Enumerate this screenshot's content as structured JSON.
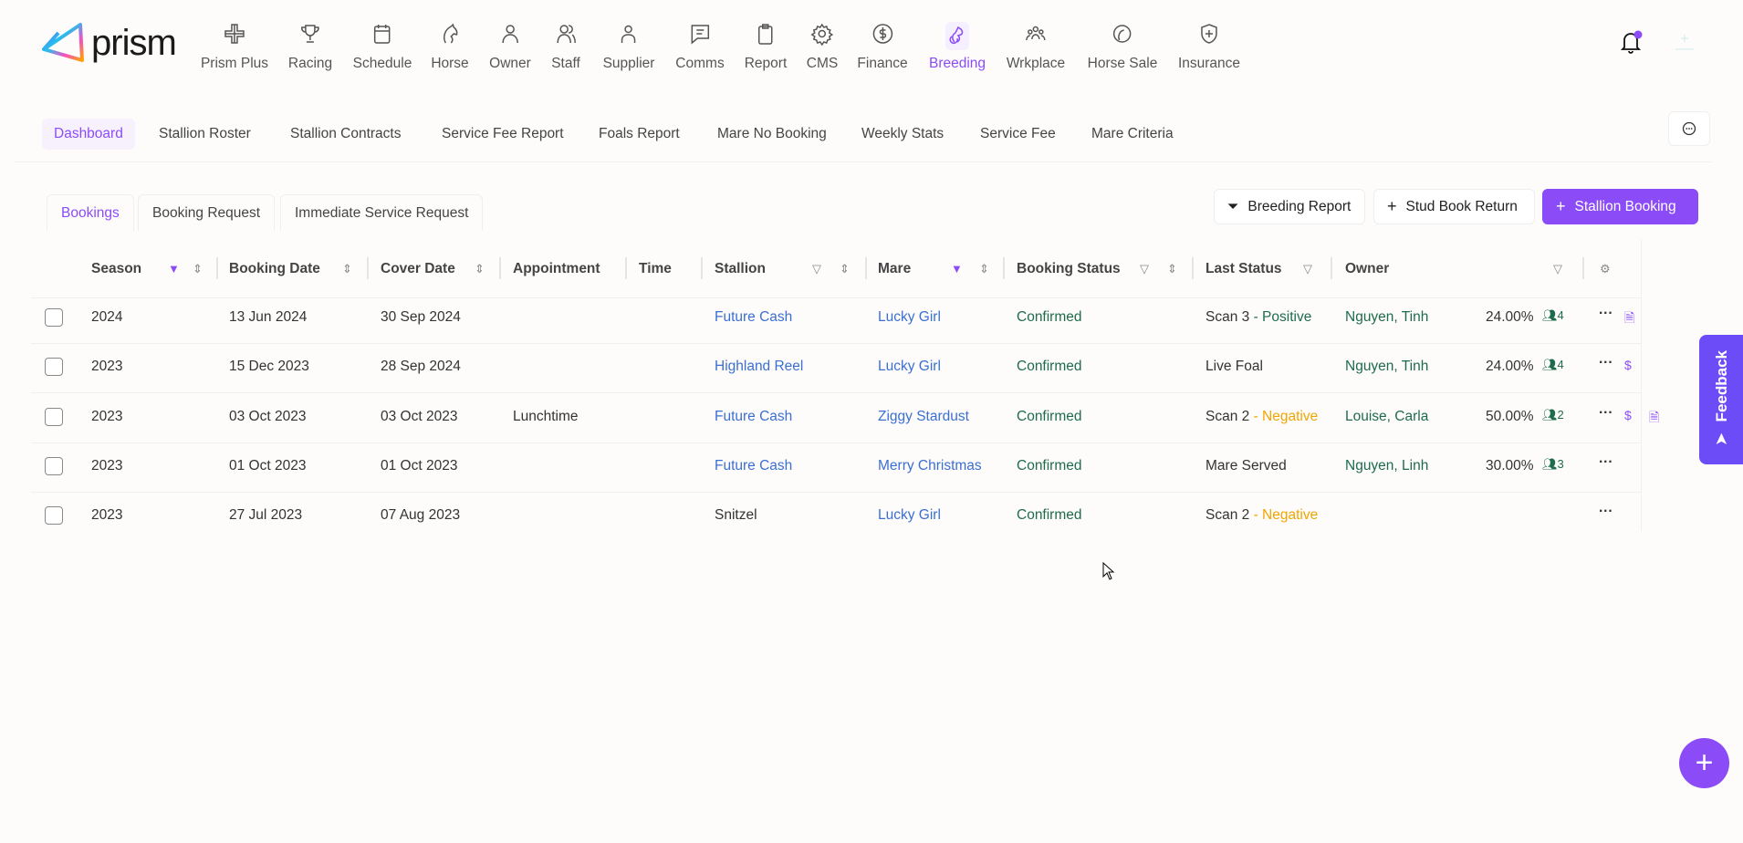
{
  "brand": {
    "name": "prism"
  },
  "nav": [
    {
      "label": "Prism Plus",
      "icon": "prism-plus-icon"
    },
    {
      "label": "Racing",
      "icon": "trophy-icon"
    },
    {
      "label": "Schedule",
      "icon": "calendar-icon"
    },
    {
      "label": "Horse",
      "icon": "horse-icon"
    },
    {
      "label": "Owner",
      "icon": "user-icon"
    },
    {
      "label": "Staff",
      "icon": "users-icon"
    },
    {
      "label": "Supplier",
      "icon": "supplier-icon"
    },
    {
      "label": "Comms",
      "icon": "message-icon"
    },
    {
      "label": "Report",
      "icon": "clipboard-icon"
    },
    {
      "label": "CMS",
      "icon": "gear-icon"
    },
    {
      "label": "Finance",
      "icon": "dollar-icon"
    },
    {
      "label": "Breeding",
      "icon": "breeding-icon",
      "active": true
    },
    {
      "label": "Wrkplace",
      "icon": "group-icon"
    },
    {
      "label": "Horse Sale",
      "icon": "horse-sale-icon"
    },
    {
      "label": "Insurance",
      "icon": "shield-plus-icon"
    }
  ],
  "subnav": [
    "Dashboard",
    "Stallion Roster",
    "Stallion Contracts",
    "Service Fee Report",
    "Foals Report",
    "Mare No Booking",
    "Weekly Stats",
    "Service Fee",
    "Mare Criteria"
  ],
  "tabs": [
    "Bookings",
    "Booking Request",
    "Immediate Service Request"
  ],
  "actions": {
    "breeding_report": "Breeding Report",
    "stud_book_return": "Stud Book Return",
    "stallion_booking": "Stallion Booking"
  },
  "columns": [
    "Season",
    "Booking Date",
    "Cover Date",
    "Appointment",
    "Time",
    "Stallion",
    "Mare",
    "Booking Status",
    "Last Status",
    "Owner"
  ],
  "rows": [
    {
      "season": "2024",
      "booking_date": "13 Jun 2024",
      "cover_date": "30 Sep 2024",
      "appointment": "",
      "time": "",
      "stallion": "Future Cash",
      "stallion_link": true,
      "mare": "Lucky Girl",
      "status": "Confirmed",
      "last_status": "Scan 3",
      "last_result": "- Positive",
      "result_type": "positive",
      "owner": "Nguyen, Tinh",
      "share": "24.00%",
      "owners_count": "4",
      "icons": [
        "document"
      ]
    },
    {
      "season": "2023",
      "booking_date": "15 Dec 2023",
      "cover_date": "28 Sep 2024",
      "appointment": "",
      "time": "",
      "stallion": "Highland Reel",
      "stallion_link": true,
      "mare": "Lucky Girl",
      "status": "Confirmed",
      "last_status": "Live Foal",
      "last_result": "",
      "result_type": "",
      "owner": "Nguyen, Tinh",
      "share": "24.00%",
      "owners_count": "4",
      "icons": [
        "dollar"
      ]
    },
    {
      "season": "2023",
      "booking_date": "03 Oct 2023",
      "cover_date": "03 Oct 2023",
      "appointment": "Lunchtime",
      "time": "",
      "stallion": "Future Cash",
      "stallion_link": true,
      "mare": "Ziggy Stardust",
      "status": "Confirmed",
      "last_status": "Scan 2",
      "last_result": "- Negative",
      "result_type": "negative",
      "owner": "Louise, Carla",
      "share": "50.00%",
      "owners_count": "2",
      "icons": [
        "dollar",
        "document"
      ]
    },
    {
      "season": "2023",
      "booking_date": "01 Oct 2023",
      "cover_date": "01 Oct 2023",
      "appointment": "",
      "time": "",
      "stallion": "Future Cash",
      "stallion_link": true,
      "mare": "Merry Christmas",
      "status": "Confirmed",
      "last_status": "Mare Served",
      "last_result": "",
      "result_type": "",
      "owner": "Nguyen, Linh",
      "share": "30.00%",
      "owners_count": "3",
      "icons": []
    },
    {
      "season": "2023",
      "booking_date": "27 Jul 2023",
      "cover_date": "07 Aug 2023",
      "appointment": "",
      "time": "",
      "stallion": "Snitzel",
      "stallion_link": false,
      "mare": "Lucky Girl",
      "status": "Confirmed",
      "last_status": "Scan 2",
      "last_result": "- Negative",
      "result_type": "negative",
      "owner": "",
      "share": "",
      "owners_count": "",
      "icons": []
    }
  ],
  "feedback": {
    "label": "Feedback"
  },
  "colors": {
    "accent": "#8b4cf7",
    "link": "#3b6fd1",
    "green": "#1f6b4d",
    "negative": "#f0a500",
    "feedback": "#6c4cf7"
  }
}
